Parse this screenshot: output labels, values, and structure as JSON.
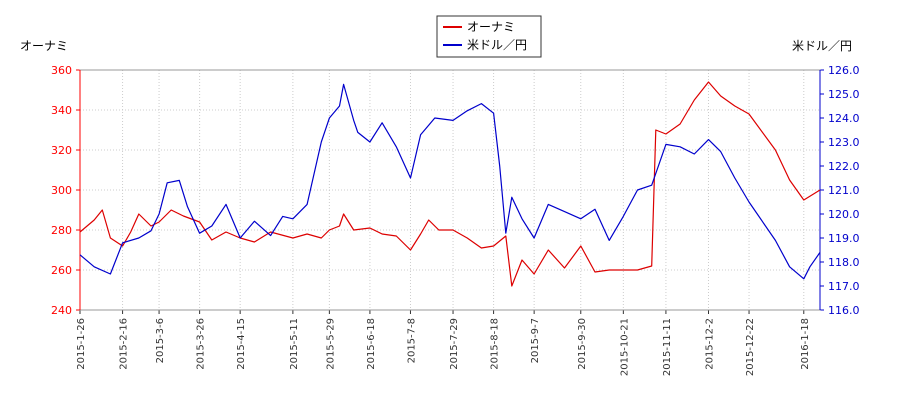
{
  "chart_data": {
    "type": "line",
    "legend": {
      "placement": "top-center"
    },
    "axes": {
      "left": {
        "label": "オーナミ",
        "ylim": [
          240,
          360
        ],
        "ticks": [
          240,
          260,
          280,
          300,
          320,
          340,
          360
        ],
        "color": "#ff0000"
      },
      "right": {
        "label": "米ドル／円",
        "ylim": [
          116.0,
          126.0
        ],
        "ticks": [
          "116.0",
          "117.0",
          "118.0",
          "119.0",
          "120.0",
          "121.0",
          "122.0",
          "123.0",
          "124.0",
          "125.0",
          "126.0"
        ],
        "color": "#0000cc"
      },
      "x": {
        "start": "2015-1-26",
        "end": "2016-1-26",
        "ticks": [
          "2015-1-26",
          "2015-2-16",
          "2015-3-6",
          "2015-3-26",
          "2015-4-15",
          "2015-5-11",
          "2015-5-29",
          "2015-6-18",
          "2015-7-8",
          "2015-7-29",
          "2015-8-18",
          "2015-9-7",
          "2015-9-30",
          "2015-10-21",
          "2015-11-11",
          "2015-12-2",
          "2015-12-22",
          "2016-1-18"
        ]
      }
    },
    "grid": true,
    "series": [
      {
        "name": "オーナミ",
        "axis": "left",
        "color": "#dd0000",
        "points": [
          [
            "2015-1-26",
            279
          ],
          [
            "2015-2-2",
            285
          ],
          [
            "2015-2-6",
            290
          ],
          [
            "2015-2-10",
            276
          ],
          [
            "2015-2-16",
            272
          ],
          [
            "2015-2-20",
            279
          ],
          [
            "2015-2-24",
            288
          ],
          [
            "2015-3-2",
            282
          ],
          [
            "2015-3-6",
            284
          ],
          [
            "2015-3-12",
            290
          ],
          [
            "2015-3-18",
            287
          ],
          [
            "2015-3-26",
            284
          ],
          [
            "2015-4-1",
            275
          ],
          [
            "2015-4-8",
            279
          ],
          [
            "2015-4-15",
            276
          ],
          [
            "2015-4-22",
            274
          ],
          [
            "2015-4-30",
            279
          ],
          [
            "2015-5-11",
            276
          ],
          [
            "2015-5-18",
            278
          ],
          [
            "2015-5-25",
            276
          ],
          [
            "2015-5-29",
            280
          ],
          [
            "2015-6-3",
            282
          ],
          [
            "2015-6-5",
            288
          ],
          [
            "2015-6-10",
            280
          ],
          [
            "2015-6-18",
            281
          ],
          [
            "2015-6-24",
            278
          ],
          [
            "2015-7-1",
            277
          ],
          [
            "2015-7-8",
            270
          ],
          [
            "2015-7-13",
            278
          ],
          [
            "2015-7-17",
            285
          ],
          [
            "2015-7-22",
            280
          ],
          [
            "2015-7-29",
            280
          ],
          [
            "2015-8-5",
            276
          ],
          [
            "2015-8-12",
            271
          ],
          [
            "2015-8-18",
            272
          ],
          [
            "2015-8-24",
            277
          ],
          [
            "2015-8-27",
            252
          ],
          [
            "2015-9-1",
            265
          ],
          [
            "2015-9-7",
            258
          ],
          [
            "2015-9-14",
            270
          ],
          [
            "2015-9-22",
            261
          ],
          [
            "2015-9-30",
            272
          ],
          [
            "2015-10-7",
            259
          ],
          [
            "2015-10-14",
            260
          ],
          [
            "2015-10-21",
            260
          ],
          [
            "2015-10-28",
            260
          ],
          [
            "2015-11-4",
            262
          ],
          [
            "2015-11-6",
            330
          ],
          [
            "2015-11-11",
            328
          ],
          [
            "2015-11-18",
            333
          ],
          [
            "2015-11-25",
            345
          ],
          [
            "2015-12-2",
            354
          ],
          [
            "2015-12-8",
            347
          ],
          [
            "2015-12-15",
            342
          ],
          [
            "2015-12-22",
            338
          ],
          [
            "2016-1-4",
            320
          ],
          [
            "2016-1-11",
            305
          ],
          [
            "2016-1-18",
            295
          ],
          [
            "2016-1-26",
            300
          ]
        ]
      },
      {
        "name": "米ドル／円",
        "axis": "right",
        "color": "#0000cc",
        "points": [
          [
            "2015-1-26",
            118.3
          ],
          [
            "2015-2-2",
            117.8
          ],
          [
            "2015-2-10",
            117.5
          ],
          [
            "2015-2-16",
            118.8
          ],
          [
            "2015-2-24",
            119.0
          ],
          [
            "2015-3-2",
            119.3
          ],
          [
            "2015-3-6",
            120.0
          ],
          [
            "2015-3-10",
            121.3
          ],
          [
            "2015-3-16",
            121.4
          ],
          [
            "2015-3-20",
            120.3
          ],
          [
            "2015-3-26",
            119.2
          ],
          [
            "2015-4-1",
            119.5
          ],
          [
            "2015-4-8",
            120.4
          ],
          [
            "2015-4-15",
            119.0
          ],
          [
            "2015-4-22",
            119.7
          ],
          [
            "2015-4-30",
            119.1
          ],
          [
            "2015-5-6",
            119.9
          ],
          [
            "2015-5-11",
            119.8
          ],
          [
            "2015-5-18",
            120.4
          ],
          [
            "2015-5-25",
            123.0
          ],
          [
            "2015-5-29",
            124.0
          ],
          [
            "2015-6-3",
            124.5
          ],
          [
            "2015-6-5",
            125.4
          ],
          [
            "2015-6-10",
            123.9
          ],
          [
            "2015-6-12",
            123.4
          ],
          [
            "2015-6-18",
            123.0
          ],
          [
            "2015-6-24",
            123.8
          ],
          [
            "2015-7-1",
            122.8
          ],
          [
            "2015-7-8",
            121.5
          ],
          [
            "2015-7-13",
            123.3
          ],
          [
            "2015-7-20",
            124.0
          ],
          [
            "2015-7-29",
            123.9
          ],
          [
            "2015-8-5",
            124.3
          ],
          [
            "2015-8-12",
            124.6
          ],
          [
            "2015-8-18",
            124.2
          ],
          [
            "2015-8-21",
            122.0
          ],
          [
            "2015-8-24",
            119.2
          ],
          [
            "2015-8-27",
            120.7
          ],
          [
            "2015-9-1",
            119.8
          ],
          [
            "2015-9-7",
            119.0
          ],
          [
            "2015-9-14",
            120.4
          ],
          [
            "2015-9-22",
            120.1
          ],
          [
            "2015-9-30",
            119.8
          ],
          [
            "2015-10-7",
            120.2
          ],
          [
            "2015-10-14",
            118.9
          ],
          [
            "2015-10-21",
            119.9
          ],
          [
            "2015-10-28",
            121.0
          ],
          [
            "2015-11-4",
            121.2
          ],
          [
            "2015-11-11",
            122.9
          ],
          [
            "2015-11-18",
            122.8
          ],
          [
            "2015-11-25",
            122.5
          ],
          [
            "2015-12-2",
            123.1
          ],
          [
            "2015-12-8",
            122.6
          ],
          [
            "2015-12-15",
            121.5
          ],
          [
            "2015-12-22",
            120.5
          ],
          [
            "2016-1-4",
            118.9
          ],
          [
            "2016-1-11",
            117.8
          ],
          [
            "2016-1-18",
            117.3
          ],
          [
            "2016-1-21",
            117.8
          ],
          [
            "2016-1-26",
            118.4
          ]
        ]
      }
    ]
  }
}
